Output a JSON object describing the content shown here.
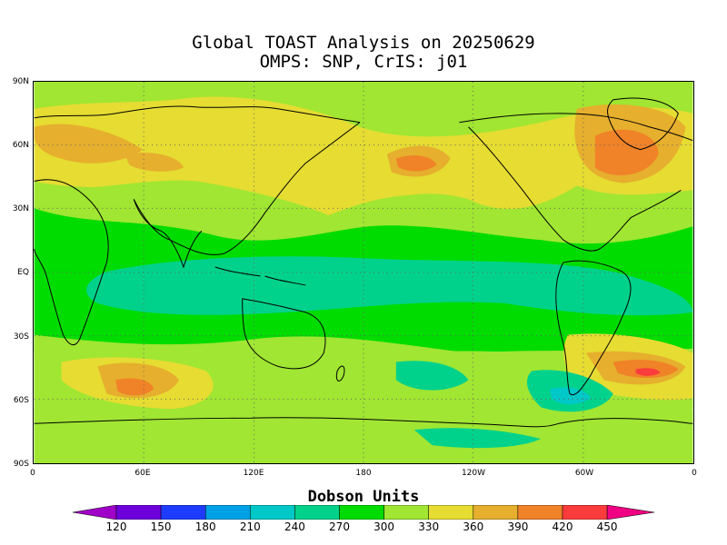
{
  "title": {
    "line1": "Global TOAST Analysis on 20250629",
    "line2": "OMPS: SNP, CrIS: j01"
  },
  "axes": {
    "y_ticks": [
      "90N",
      "60N",
      "30N",
      "EQ",
      "30S",
      "60S",
      "90S"
    ],
    "x_ticks": [
      "0",
      "60E",
      "120E",
      "180",
      "120W",
      "60W",
      "0"
    ]
  },
  "colorbar": {
    "title": "Dobson Units",
    "levels": [
      "120",
      "150",
      "180",
      "210",
      "240",
      "270",
      "300",
      "330",
      "360",
      "390",
      "420",
      "450"
    ],
    "colors": [
      "#a000c8",
      "#6e00dc",
      "#1e3cff",
      "#00a0e6",
      "#00c8c8",
      "#00d28c",
      "#00dc00",
      "#a0e632",
      "#e6dc32",
      "#e6af2d",
      "#f08228",
      "#fa3c3c",
      "#f00082"
    ]
  }
}
